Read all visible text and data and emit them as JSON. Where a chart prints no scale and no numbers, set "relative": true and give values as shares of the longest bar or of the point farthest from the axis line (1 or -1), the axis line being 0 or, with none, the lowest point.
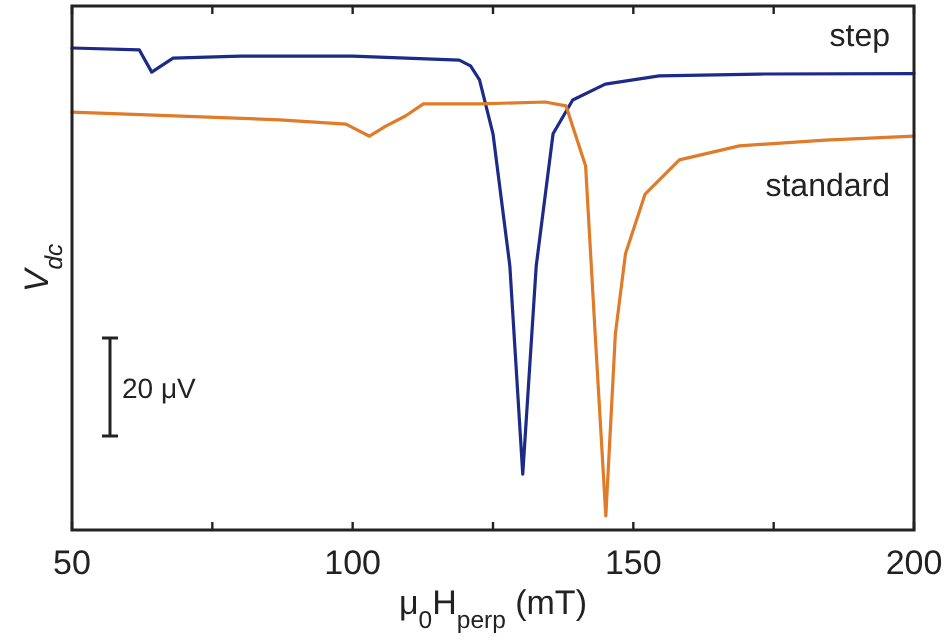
{
  "chart_data": {
    "type": "line",
    "relative": true,
    "xlabel": "μ$_{0}$H$_{perp}$ (mT)",
    "ylabel": "V$_{dc}$",
    "xlim": [
      50,
      200
    ],
    "xticks": [
      50,
      {
        "value": 75,
        "label": null
      },
      100,
      {
        "value": 125,
        "label": null
      },
      150,
      {
        "value": 175,
        "label": null
      },
      200
    ],
    "tick_labels": "x",
    "line_style": "solid",
    "annotations": [
      "20 μV"
    ],
    "series": [
      {
        "name": "step",
        "color": "#1c2a88",
        "x": [
          50,
          62,
          64.2,
          68,
          80,
          100,
          119,
          121,
          122.6,
          125,
          128,
          130.3,
          132.7,
          135.7,
          139.2,
          145,
          154.6,
          172.4,
          200
        ],
        "values": [
          1.0,
          0.996,
          0.95,
          0.979,
          0.983,
          0.983,
          0.975,
          0.963,
          0.934,
          0.822,
          0.548,
          0.116,
          0.548,
          0.822,
          0.892,
          0.925,
          0.942,
          0.946,
          0.947
        ]
      },
      {
        "name": "standard",
        "color": "#e07b2a",
        "x": [
          50,
          87,
          98.8,
          103,
          105.9,
          109.4,
          112.6,
          122.6,
          134.3,
          138,
          141.5,
          143.2,
          145.1,
          146.8,
          148.6,
          152.1,
          158.2,
          168.9,
          184.2,
          200
        ],
        "values": [
          0.867,
          0.851,
          0.842,
          0.817,
          0.838,
          0.859,
          0.884,
          0.884,
          0.888,
          0.88,
          0.755,
          0.407,
          0.029,
          0.407,
          0.573,
          0.697,
          0.768,
          0.797,
          0.809,
          0.817
        ]
      }
    ]
  }
}
